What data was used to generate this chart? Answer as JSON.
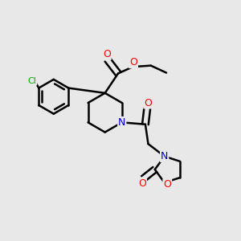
{
  "background_color": "#e8e8e8",
  "bond_color": "#000000",
  "atom_colors": {
    "O": "#ff0000",
    "N": "#0000cc",
    "Cl": "#00aa00",
    "C": "#000000"
  },
  "figsize": [
    3.0,
    3.0
  ],
  "dpi": 100
}
